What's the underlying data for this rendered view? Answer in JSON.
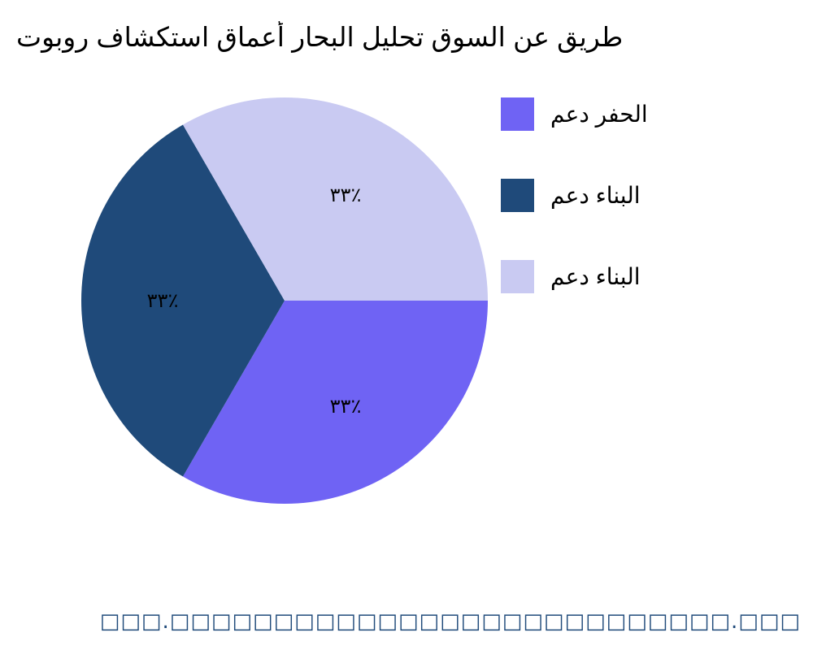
{
  "chart_data": {
    "type": "pie",
    "title": "روبوت استكشاف أعماق البحار تحليل السوق عن طريق",
    "slices": [
      {
        "name": "دعم الحفر",
        "value": 33.33,
        "label": "٣٣٪",
        "color": "#6f63f4"
      },
      {
        "name": "دعم البناء",
        "value": 33.33,
        "label": "٣٣٪",
        "color": "#1f4a7a"
      },
      {
        "name": "دعم البناء",
        "value": 33.33,
        "label": "٣٣٪",
        "color": "#c9caf2"
      }
    ],
    "legend_placement": "right"
  },
  "footer": {
    "watermark": "□□□.□□□□□□□□□□□□□□□□□□□□□□□□□□□.□□□",
    "color": "#1f4a7a"
  }
}
